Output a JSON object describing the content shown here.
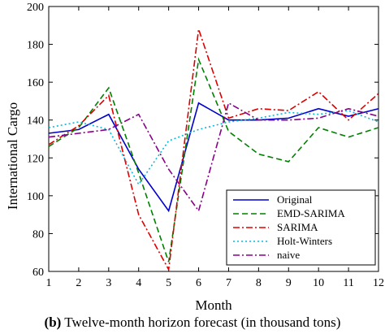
{
  "caption": {
    "prefix": "(b)",
    "text": "Twelve-month horizon forecast (in thousand tons)"
  },
  "chart_data": {
    "type": "line",
    "xlabel": "Month",
    "ylabel": "International Cargo",
    "xlim": [
      1,
      12
    ],
    "ylim": [
      60,
      200
    ],
    "x_ticks": [
      1,
      2,
      3,
      4,
      5,
      6,
      7,
      8,
      9,
      10,
      11,
      12
    ],
    "y_ticks": [
      60,
      80,
      100,
      120,
      140,
      160,
      180,
      200
    ],
    "grid": false,
    "legend_position": "bottom-right",
    "x": [
      1,
      2,
      3,
      4,
      5,
      6,
      7,
      8,
      9,
      10,
      11,
      12
    ],
    "series": [
      {
        "name": "Original",
        "color": "#0000cc",
        "dash": "solid",
        "values": [
          133,
          135,
          143,
          114,
          92,
          149,
          140,
          140,
          141,
          146,
          142,
          146
        ]
      },
      {
        "name": "EMD-SARIMA",
        "color": "#008000",
        "dash": "dashed",
        "values": [
          126,
          136,
          157,
          112,
          65,
          172,
          134,
          122,
          118,
          136,
          131,
          136
        ]
      },
      {
        "name": "SARIMA",
        "color": "#dd0000",
        "dash": "dashdot",
        "values": [
          127,
          137,
          153,
          90,
          61,
          188,
          141,
          146,
          145,
          155,
          140,
          154
        ]
      },
      {
        "name": "Holt-Winters",
        "color": "#00bbdd",
        "dash": "dotted",
        "values": [
          136,
          139,
          135,
          106,
          129,
          135,
          139,
          141,
          144,
          143,
          145,
          139
        ]
      },
      {
        "name": "naive",
        "color": "#880088",
        "dash": "dashdot",
        "values": [
          131,
          133,
          135,
          143,
          114,
          92,
          149,
          140,
          140,
          141,
          146,
          142
        ]
      }
    ]
  }
}
